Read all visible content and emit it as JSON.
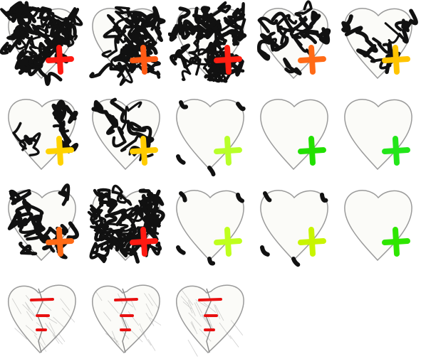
{
  "sprite_sheet": {
    "rows": [
      {
        "name": "row-1",
        "items": [
          {
            "name": "heart-healing-1",
            "scribble_level": 5,
            "plus_color": "#ff1a12",
            "state": "healing"
          },
          {
            "name": "heart-healing-2",
            "scribble_level": 4,
            "plus_color": "#ff5a14",
            "state": "healing"
          },
          {
            "name": "heart-healing-3",
            "scribble_level": 5,
            "plus_color": "#ff1f12",
            "state": "healing"
          },
          {
            "name": "heart-healing-4",
            "scribble_level": 3,
            "plus_color": "#ff6a16",
            "state": "healing"
          },
          {
            "name": "heart-healing-5",
            "scribble_level": 2,
            "plus_color": "#ffc400",
            "state": "healing"
          }
        ]
      },
      {
        "name": "row-2",
        "items": [
          {
            "name": "heart-healing-6",
            "scribble_level": 2,
            "plus_color": "#ffd200",
            "state": "healing"
          },
          {
            "name": "heart-healing-7",
            "scribble_level": 2,
            "plus_color": "#ffcc00",
            "state": "healing"
          },
          {
            "name": "heart-healing-8",
            "scribble_level": 1,
            "plus_color": "#b8ff2a",
            "state": "healing"
          },
          {
            "name": "heart-healing-9",
            "scribble_level": 0,
            "plus_color": "#22e000",
            "state": "healing"
          },
          {
            "name": "heart-healing-10",
            "scribble_level": 0,
            "plus_color": "#23e61a",
            "state": "healing"
          }
        ]
      },
      {
        "name": "row-3",
        "items": [
          {
            "name": "heart-healing-11",
            "scribble_level": 3,
            "plus_color": "#ff6a16",
            "state": "healing"
          },
          {
            "name": "heart-healing-12",
            "scribble_level": 5,
            "plus_color": "#ff1a12",
            "state": "healing"
          },
          {
            "name": "heart-healing-13",
            "scribble_level": 1,
            "plus_color": "#bfff1e",
            "state": "healing"
          },
          {
            "name": "heart-healing-14",
            "scribble_level": 1,
            "plus_color": "#c8f500",
            "state": "healing"
          },
          {
            "name": "heart-healing-15",
            "scribble_level": 0,
            "plus_color": "#2ee600",
            "state": "healing"
          }
        ]
      },
      {
        "name": "row-4",
        "items": [
          {
            "name": "heart-broken-1",
            "state": "broken",
            "stitch_color": "#e81010"
          },
          {
            "name": "heart-broken-2",
            "state": "broken",
            "stitch_color": "#e81010"
          },
          {
            "name": "heart-broken-3",
            "state": "broken",
            "stitch_color": "#e81010"
          }
        ]
      }
    ]
  }
}
